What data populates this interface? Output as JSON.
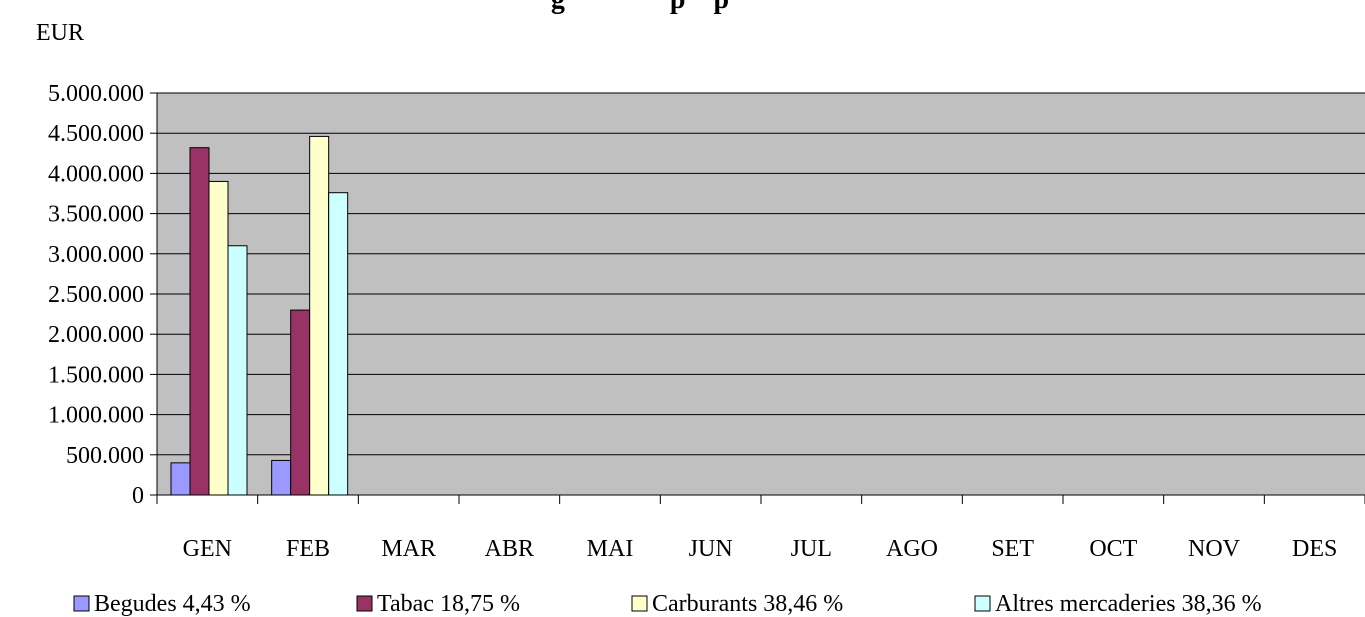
{
  "chart_data": {
    "type": "bar",
    "title": "",
    "title_visible_fragment": "g               p    p",
    "ylabel": "EUR",
    "xlabel": "",
    "categories": [
      "GEN",
      "FEB",
      "MAR",
      "ABR",
      "MAI",
      "JUN",
      "JUL",
      "AGO",
      "SET",
      "OCT",
      "NOV",
      "DES"
    ],
    "ylim": [
      0,
      5000000
    ],
    "y_ticks": [
      {
        "value": 0,
        "label": "0"
      },
      {
        "value": 500000,
        "label": "500.000"
      },
      {
        "value": 1000000,
        "label": "1.000.000"
      },
      {
        "value": 1500000,
        "label": "1.500.000"
      },
      {
        "value": 2000000,
        "label": "2.000.000"
      },
      {
        "value": 2500000,
        "label": "2.500.000"
      },
      {
        "value": 3000000,
        "label": "3.000.000"
      },
      {
        "value": 3500000,
        "label": "3.500.000"
      },
      {
        "value": 4000000,
        "label": "4.000.000"
      },
      {
        "value": 4500000,
        "label": "4.500.000"
      },
      {
        "value": 5000000,
        "label": "5.000.000"
      }
    ],
    "grid": true,
    "plot_background": "#c0c0c0",
    "legend_position": "bottom",
    "series": [
      {
        "name": "Begudes 4,43 %",
        "color": "#9999ff",
        "values": [
          400000,
          430000,
          null,
          null,
          null,
          null,
          null,
          null,
          null,
          null,
          null,
          null
        ]
      },
      {
        "name": "Tabac 18,75 %",
        "color": "#993366",
        "values": [
          4320000,
          2300000,
          null,
          null,
          null,
          null,
          null,
          null,
          null,
          null,
          null,
          null
        ]
      },
      {
        "name": "Carburants 38,46 %",
        "color": "#ffffcc",
        "values": [
          3900000,
          4460000,
          null,
          null,
          null,
          null,
          null,
          null,
          null,
          null,
          null,
          null
        ]
      },
      {
        "name": "Altres mercaderies 38,36 %",
        "color": "#ccffff",
        "values": [
          3100000,
          3760000,
          null,
          null,
          null,
          null,
          null,
          null,
          null,
          null,
          null,
          null
        ]
      }
    ]
  }
}
